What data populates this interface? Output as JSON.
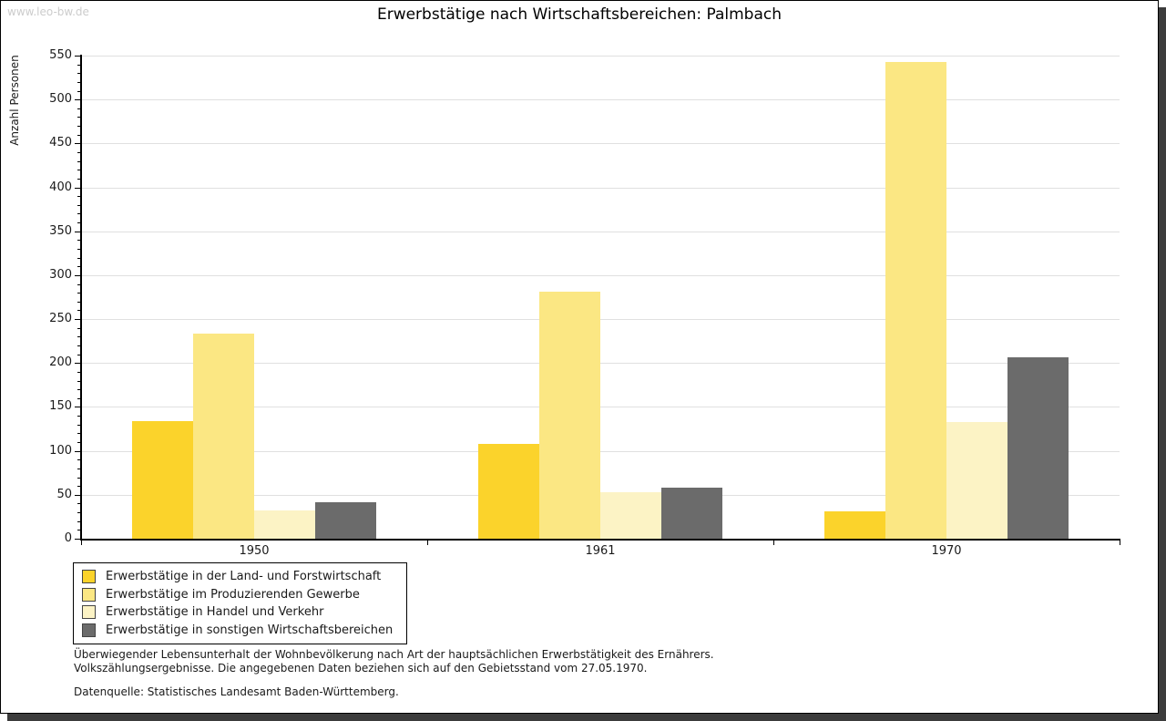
{
  "watermark": "www.leo-bw.de",
  "chart_data": {
    "type": "bar",
    "title": "Erwerbstätige nach Wirtschaftsbereichen: Palmbach",
    "ylabel": "Anzahl Personen",
    "categories": [
      "1950",
      "1961",
      "1970"
    ],
    "series": [
      {
        "name": "Erwerbstätige in der Land- und Forstwirtschaft",
        "color": "#fbd32b",
        "values": [
          134,
          108,
          31
        ]
      },
      {
        "name": "Erwerbstätige im Produzierenden Gewerbe",
        "color": "#fbe783",
        "values": [
          233,
          281,
          543
        ]
      },
      {
        "name": "Erwerbstätige in Handel und Verkehr",
        "color": "#fcf3c5",
        "values": [
          32,
          53,
          133
        ]
      },
      {
        "name": "Erwerbstätige in sonstigen Wirtschaftsbereichen",
        "color": "#6b6b6b",
        "values": [
          42,
          58,
          206
        ]
      }
    ],
    "ylim": [
      0,
      550
    ],
    "ytick_step": 50,
    "y_minor_step": 10,
    "grid": true,
    "legend_position": "bottom-left",
    "gridline_color": "#e0e0e0"
  },
  "footnotes": {
    "line1": "Überwiegender Lebensunterhalt der Wohnbevölkerung nach Art der hauptsächlichen Erwerbstätigkeit des Ernährers.",
    "line2": "Volkszählungsergebnisse. Die angegebenen Daten beziehen sich auf den Gebietsstand vom 27.05.1970.",
    "source": "Datenquelle: Statistisches Landesamt Baden-Württemberg."
  }
}
